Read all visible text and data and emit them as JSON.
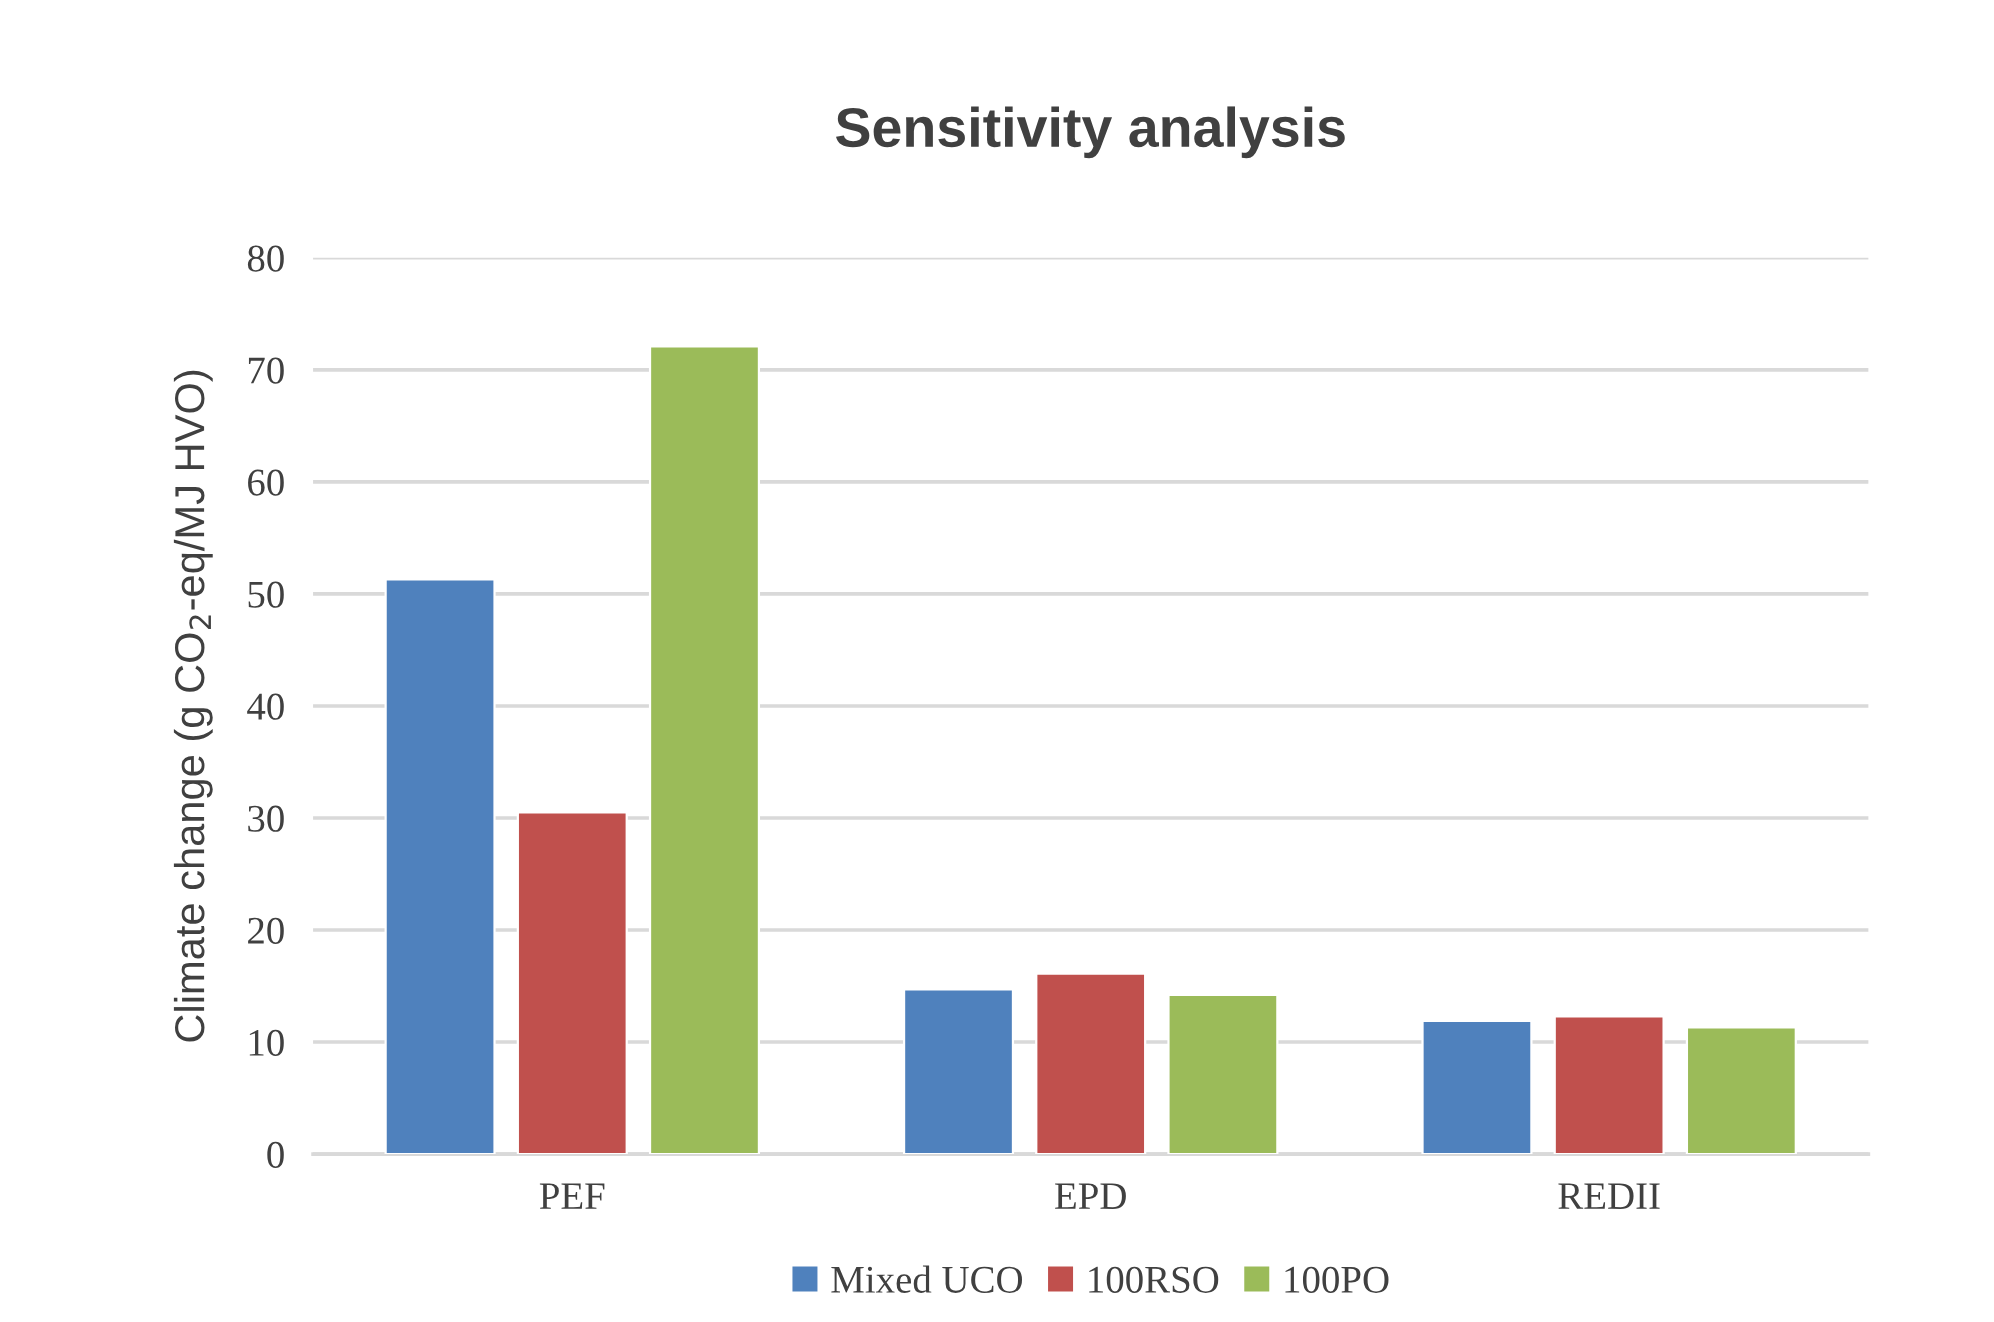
{
  "chart_data": {
    "type": "bar",
    "title": "Sensitivity analysis",
    "ylabel": "Climate change (g CO$_{2}$-eq/MJ HVO)",
    "categories": [
      "PEF",
      "EPD",
      "REDII"
    ],
    "series": [
      {
        "name": "Mixed UCO",
        "color": "#4f81bd",
        "values": [
          51.3,
          14.7,
          11.9
        ]
      },
      {
        "name": "100RSO",
        "color": "#c0504d",
        "values": [
          30.5,
          16.1,
          12.3
        ]
      },
      {
        "name": "100PO",
        "color": "#9bbb59",
        "values": [
          72.1,
          14.2,
          11.3
        ]
      }
    ],
    "ylim": [
      0,
      80
    ],
    "yticks": [
      0,
      10,
      20,
      30,
      40,
      50,
      60,
      70,
      80
    ],
    "grid": "y",
    "legend": "bottom"
  }
}
